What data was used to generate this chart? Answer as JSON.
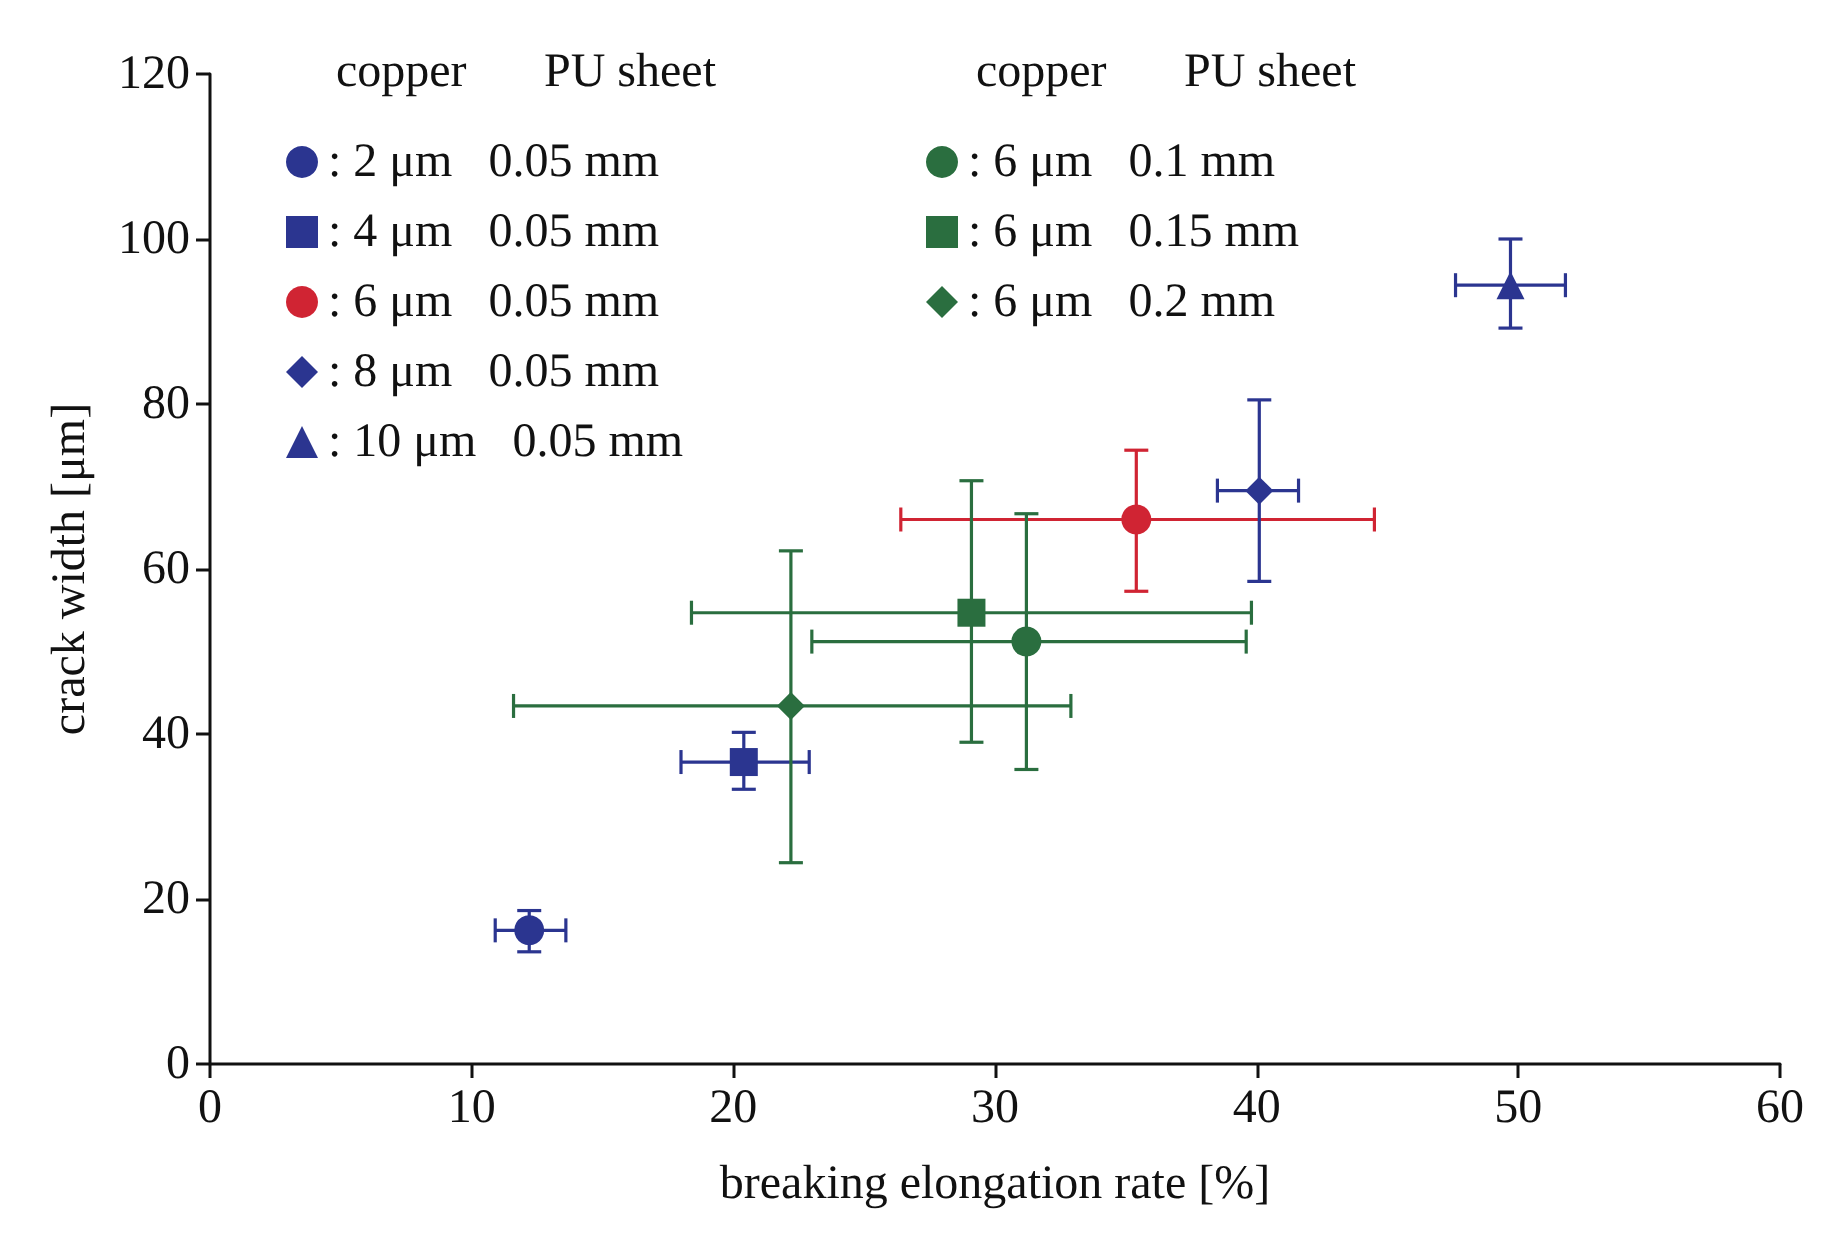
{
  "chart_data": {
    "type": "scatter",
    "xlabel": "breaking elongation rate [%]",
    "ylabel": "crack width [μm]",
    "legend_title": "copper   PU sheet",
    "legend": "top left",
    "grid": false,
    "xlim": [
      0,
      60
    ],
    "xticks": [
      0,
      10,
      20,
      30,
      40,
      50,
      60
    ],
    "ylim": [
      0,
      120
    ],
    "yticks": [
      0,
      20,
      40,
      60,
      80,
      100,
      120
    ],
    "series": [
      {
        "name": ": 2 μm   0.05 mm",
        "color": "#2b3590",
        "marker": "circle",
        "x": [
          12.2
        ],
        "values": [
          16.2
        ],
        "xerrors": [
          [
            10.9,
            13.6
          ]
        ],
        "errors": [
          [
            13.6,
            18.6
          ]
        ]
      },
      {
        "name": ": 4 μm   0.05 mm",
        "color": "#2b3590",
        "marker": "square",
        "x": [
          20.4
        ],
        "values": [
          36.6
        ],
        "xerrors": [
          [
            18.0,
            22.9
          ]
        ],
        "errors": [
          [
            33.3,
            40.2
          ]
        ]
      },
      {
        "name": ": 6 μm   0.05 mm",
        "color": "#d02433",
        "marker": "circle",
        "x": [
          35.4
        ],
        "values": [
          66.0
        ],
        "xerrors": [
          [
            26.4,
            44.5
          ]
        ],
        "errors": [
          [
            57.3,
            74.4
          ]
        ]
      },
      {
        "name": ": 8 μm   0.05 mm",
        "color": "#2b3590",
        "marker": "diamond",
        "x": [
          40.1
        ],
        "values": [
          69.5
        ],
        "xerrors": [
          [
            38.5,
            41.6
          ]
        ],
        "errors": [
          [
            58.5,
            80.5
          ]
        ]
      },
      {
        "name": ": 10 μm   0.05 mm",
        "color": "#2b3590",
        "marker": "triangle",
        "x": [
          49.7
        ],
        "values": [
          94.4
        ],
        "xerrors": [
          [
            47.6,
            51.8
          ]
        ],
        "errors": [
          [
            89.2,
            100.0
          ]
        ]
      },
      {
        "name": ": 6 μm   0.1 mm",
        "color": "#2a6e3f",
        "marker": "circle",
        "x": [
          31.2
        ],
        "values": [
          51.2
        ],
        "xerrors": [
          [
            23.0,
            39.6
          ]
        ],
        "errors": [
          [
            35.7,
            66.7
          ]
        ]
      },
      {
        "name": ": 6 μm   0.15 mm",
        "color": "#2a6e3f",
        "marker": "square",
        "x": [
          29.1
        ],
        "values": [
          54.7
        ],
        "xerrors": [
          [
            18.4,
            39.8
          ]
        ],
        "errors": [
          [
            39.0,
            70.7
          ]
        ]
      },
      {
        "name": ": 6 μm   0.2 mm",
        "color": "#2a6e3f",
        "marker": "diamond",
        "x": [
          22.2
        ],
        "values": [
          43.4
        ],
        "xerrors": [
          [
            11.6,
            32.9
          ]
        ],
        "errors": [
          [
            24.4,
            62.2
          ]
        ]
      }
    ]
  }
}
